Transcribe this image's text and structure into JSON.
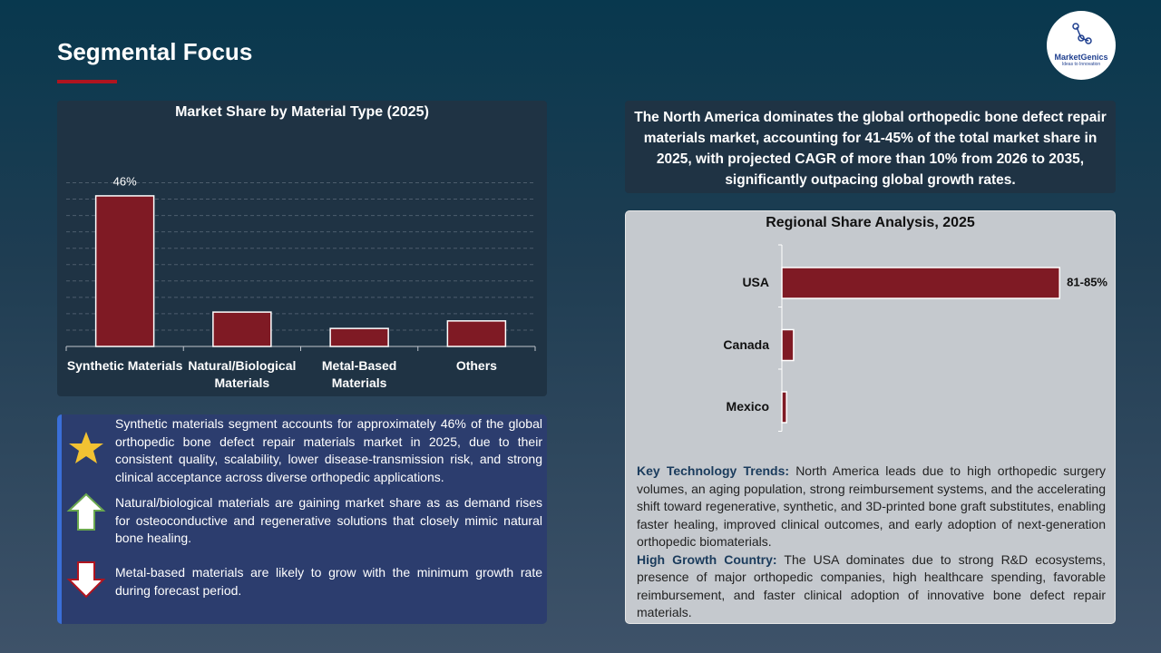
{
  "header": {
    "title": "Segmental Focus",
    "logo_name": "MarketGenics",
    "logo_tagline": "Ideas to Innovation"
  },
  "chart_data": [
    {
      "type": "bar",
      "title": "Market Share by Material Type (2025)",
      "categories": [
        "Synthetic Materials",
        "Natural/Biological Materials",
        "Metal-Based Materials",
        "Others"
      ],
      "values": [
        46,
        10.5,
        5.5,
        7.8
      ],
      "value_labels": [
        "46%",
        null,
        null,
        null
      ],
      "color": "#7f1a24",
      "ylim": [
        0,
        50
      ],
      "yticks": [
        5,
        10,
        15,
        20,
        25,
        30,
        35,
        40,
        45,
        50
      ],
      "grid": true
    },
    {
      "type": "bar",
      "orientation": "horizontal",
      "title": "Regional Share Analysis, 2025",
      "categories": [
        "USA",
        "Canada",
        "Mexico"
      ],
      "values": [
        83,
        3.5,
        1.4
      ],
      "value_labels": [
        "81-85%",
        null,
        null
      ],
      "color": "#7f1a24",
      "xlim": [
        0,
        90
      ],
      "grid": false
    }
  ],
  "summary": "The North America dominates the global orthopedic bone defect repair materials market, accounting for 41-45% of the total market share in 2025, with projected CAGR of more than 10% from 2026 to 2035, significantly outpacing global growth rates.",
  "insights": [
    "Synthetic materials segment accounts for approximately 46% of the global orthopedic bone defect repair materials market in 2025, due to their consistent quality, scalability, lower disease-transmission risk, and strong clinical acceptance across diverse orthopedic applications.",
    "Natural/biological materials are gaining market share as as demand rises for osteoconductive and regenerative solutions that closely mimic natural bone healing.",
    "Metal-based materials are likely to grow with the minimum growth rate during forecast period."
  ],
  "trends": [
    {
      "label": "Key Technology Trends:",
      "text": "North America leads due to high orthopedic surgery volumes, an aging population, strong reimbursement systems, and the accelerating shift toward regenerative, synthetic, and 3D-printed bone graft substitutes, enabling faster healing, improved clinical outcomes, and early adoption of next-generation orthopedic biomaterials."
    },
    {
      "label": "High Growth Country:",
      "text": "The USA dominates due to strong R&D ecosystems, presence of major orthopedic companies, high healthcare spending, favorable reimbursement, and faster clinical adoption of innovative bone defect repair materials."
    }
  ]
}
